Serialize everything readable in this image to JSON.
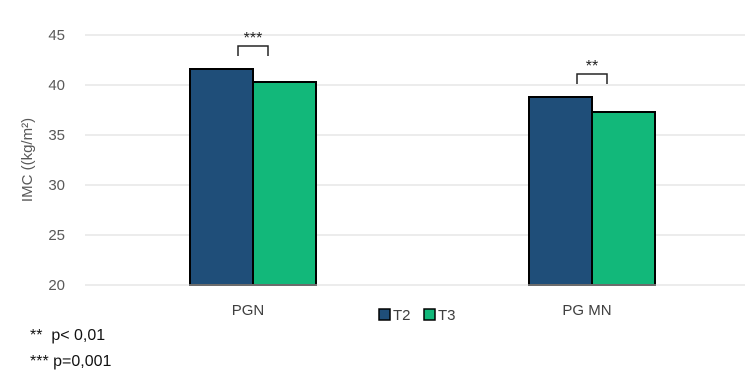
{
  "chart_data": {
    "type": "bar",
    "categories": [
      "PGN",
      "PG MN"
    ],
    "series": [
      {
        "name": "T2",
        "values": [
          41.6,
          38.8
        ],
        "color": "#1F4E79"
      },
      {
        "name": "T3",
        "values": [
          40.3,
          37.3
        ],
        "color": "#12B87A"
      }
    ],
    "ylabel": "IMC ((kg/m²)",
    "ylim": [
      20,
      45
    ],
    "yticks": [
      20,
      25,
      30,
      35,
      40,
      45
    ],
    "grid": true,
    "legend_position": "bottom-center",
    "significance": [
      {
        "category": "PGN",
        "label": "***"
      },
      {
        "category": "PG MN",
        "label": "**"
      }
    ]
  },
  "notes": [
    "**  p< 0,01",
    "*** p=0,001"
  ]
}
